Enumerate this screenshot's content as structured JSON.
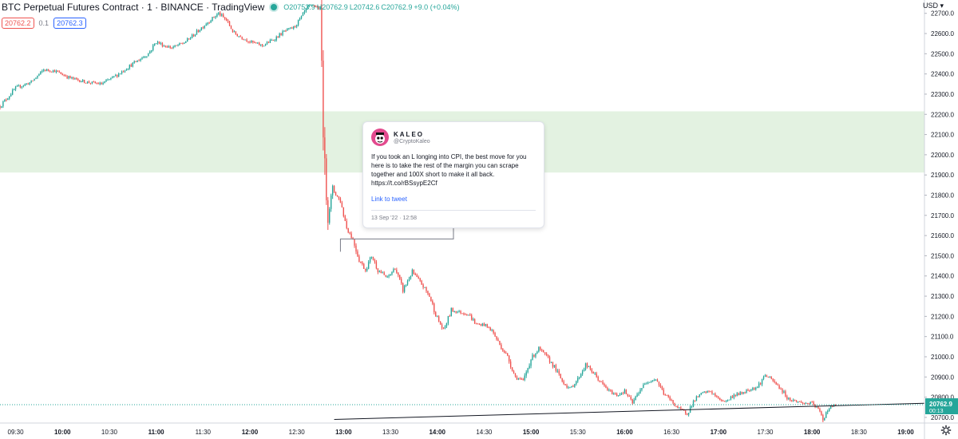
{
  "header": {
    "title": "BTC Perpetual Futures Contract · 1 · BINANCE · TradingView",
    "ohlc": {
      "open": "O20753.9",
      "high": "H20762.9",
      "low": "L20742.6",
      "close": "C20762.9",
      "change": "+9.0 (+0.04%)"
    },
    "status_color": "#26a69a"
  },
  "order_panel": {
    "sell_price": "20762.2",
    "spread": "0.1",
    "buy_price": "20762.3"
  },
  "currency": "USD",
  "tweet": {
    "name": "KALEO",
    "handle": "@CryptoKaleo",
    "text": "If you took an L longing into CPI, the best move for you here is to take the rest of the margin you can scrape together and 100X short to make it all back. https://t.co/rBSsypE2Cf",
    "link_label": "Link to tweet",
    "date": "13 Sep '22 · 12:58"
  },
  "price_axis": {
    "ticks": [
      "22700.0",
      "22600.0",
      "22500.0",
      "22400.0",
      "22300.0",
      "22200.0",
      "22100.0",
      "22000.0",
      "21900.0",
      "21800.0",
      "21700.0",
      "21600.0",
      "21500.0",
      "21400.0",
      "21300.0",
      "21200.0",
      "21100.0",
      "21000.0",
      "20900.0",
      "20800.0",
      "20700.0"
    ],
    "last_price": "20762.9",
    "countdown": "00:13"
  },
  "time_axis": {
    "ticks": [
      "09:30",
      "10:00",
      "10:30",
      "11:00",
      "11:30",
      "12:00",
      "12:30",
      "13:00",
      "13:30",
      "14:00",
      "14:30",
      "15:00",
      "15:30",
      "16:00",
      "16:30",
      "17:00",
      "17:30",
      "18:00",
      "18:30",
      "19:00"
    ]
  },
  "colors": {
    "up": "#26a69a",
    "down": "#ef5350",
    "zone": "#e3f2e1",
    "last_price_bg": "#26a69a"
  },
  "chart_data": {
    "type": "candlestick",
    "x_range": [
      "09:20",
      "19:12"
    ],
    "ylim": [
      20672,
      22766
    ],
    "zone": [
      21912,
      22215
    ],
    "last_price": 20762.9,
    "trendline": [
      {
        "time": "12:54",
        "price": 20690
      },
      {
        "time": "19:12",
        "price": 20770
      }
    ],
    "tweet_connector": {
      "time": "12:58",
      "price": 21520
    },
    "path": [
      [
        "09:20",
        22240
      ],
      [
        "09:30",
        22330
      ],
      [
        "09:40",
        22360
      ],
      [
        "09:48",
        22420
      ],
      [
        "09:55",
        22415
      ],
      [
        "10:05",
        22380
      ],
      [
        "10:15",
        22360
      ],
      [
        "10:25",
        22350
      ],
      [
        "10:35",
        22395
      ],
      [
        "10:45",
        22450
      ],
      [
        "10:55",
        22500
      ],
      [
        "11:00",
        22560
      ],
      [
        "11:05",
        22540
      ],
      [
        "11:10",
        22530
      ],
      [
        "11:18",
        22555
      ],
      [
        "11:25",
        22600
      ],
      [
        "11:32",
        22650
      ],
      [
        "11:40",
        22700
      ],
      [
        "11:45",
        22665
      ],
      [
        "11:50",
        22600
      ],
      [
        "12:00",
        22560
      ],
      [
        "12:08",
        22540
      ],
      [
        "12:15",
        22570
      ],
      [
        "12:22",
        22610
      ],
      [
        "12:28",
        22630
      ],
      [
        "12:33",
        22680
      ],
      [
        "12:37",
        22730
      ],
      [
        "12:41",
        22740
      ],
      [
        "12:45",
        22720
      ],
      [
        "12:48",
        21900
      ],
      [
        "12:50",
        21700
      ],
      [
        "12:53",
        21830
      ],
      [
        "12:58",
        21770
      ],
      [
        "13:02",
        21640
      ],
      [
        "13:06",
        21580
      ],
      [
        "13:10",
        21480
      ],
      [
        "13:14",
        21430
      ],
      [
        "13:18",
        21500
      ],
      [
        "13:22",
        21430
      ],
      [
        "13:28",
        21390
      ],
      [
        "13:33",
        21440
      ],
      [
        "13:38",
        21330
      ],
      [
        "13:44",
        21420
      ],
      [
        "13:50",
        21360
      ],
      [
        "13:55",
        21300
      ],
      [
        "14:00",
        21190
      ],
      [
        "14:04",
        21130
      ],
      [
        "14:09",
        21230
      ],
      [
        "14:15",
        21220
      ],
      [
        "14:20",
        21210
      ],
      [
        "14:25",
        21160
      ],
      [
        "14:30",
        21160
      ],
      [
        "14:35",
        21130
      ],
      [
        "14:40",
        21060
      ],
      [
        "14:45",
        21000
      ],
      [
        "14:50",
        20900
      ],
      [
        "14:55",
        20880
      ],
      [
        "15:00",
        20990
      ],
      [
        "15:05",
        21040
      ],
      [
        "15:10",
        21000
      ],
      [
        "15:15",
        20950
      ],
      [
        "15:20",
        20880
      ],
      [
        "15:25",
        20840
      ],
      [
        "15:30",
        20890
      ],
      [
        "15:35",
        20960
      ],
      [
        "15:40",
        20920
      ],
      [
        "15:45",
        20870
      ],
      [
        "15:50",
        20830
      ],
      [
        "15:55",
        20810
      ],
      [
        "16:00",
        20830
      ],
      [
        "16:05",
        20770
      ],
      [
        "16:10",
        20840
      ],
      [
        "16:15",
        20880
      ],
      [
        "16:20",
        20890
      ],
      [
        "16:25",
        20820
      ],
      [
        "16:30",
        20780
      ],
      [
        "16:35",
        20740
      ],
      [
        "16:40",
        20720
      ],
      [
        "16:45",
        20790
      ],
      [
        "16:50",
        20820
      ],
      [
        "16:55",
        20830
      ],
      [
        "17:00",
        20790
      ],
      [
        "17:05",
        20780
      ],
      [
        "17:10",
        20810
      ],
      [
        "17:15",
        20820
      ],
      [
        "17:20",
        20840
      ],
      [
        "17:25",
        20850
      ],
      [
        "17:30",
        20910
      ],
      [
        "17:35",
        20880
      ],
      [
        "17:40",
        20840
      ],
      [
        "17:45",
        20790
      ],
      [
        "17:50",
        20780
      ],
      [
        "17:55",
        20770
      ],
      [
        "18:00",
        20770
      ],
      [
        "18:04",
        20740
      ],
      [
        "18:07",
        20690
      ],
      [
        "18:10",
        20740
      ],
      [
        "18:15",
        20762.9
      ]
    ]
  }
}
